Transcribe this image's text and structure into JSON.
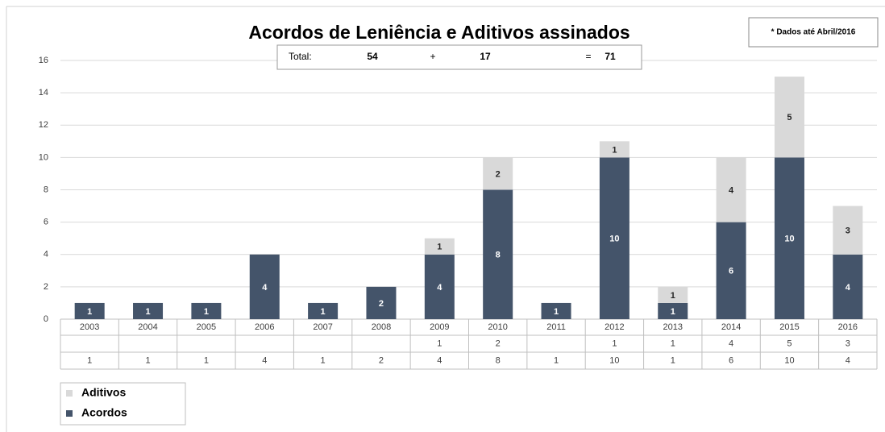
{
  "chart_data": {
    "type": "bar",
    "stacked": true,
    "title": "Acordos de Leniência e Aditivos assinados",
    "note": "* Dados até Abril/2016",
    "total": {
      "label": "Total:",
      "acordos": 54,
      "plus": "+",
      "aditivos": 17,
      "equals": "=",
      "sum": 71
    },
    "categories": [
      "2003",
      "2004",
      "2005",
      "2006",
      "2007",
      "2008",
      "2009",
      "2010",
      "2011",
      "2012",
      "2013",
      "2014",
      "2015",
      "2016"
    ],
    "series": [
      {
        "name": "Acordos",
        "color": "#44546a",
        "values": [
          1,
          1,
          1,
          4,
          1,
          2,
          4,
          8,
          1,
          10,
          1,
          6,
          10,
          4
        ]
      },
      {
        "name": "Aditivos",
        "color": "#d9d9d9",
        "values": [
          null,
          null,
          null,
          null,
          null,
          null,
          1,
          2,
          null,
          1,
          1,
          4,
          5,
          3
        ]
      }
    ],
    "ylim": [
      0,
      16
    ],
    "yticks": [
      0,
      2,
      4,
      6,
      8,
      10,
      12,
      14,
      16
    ],
    "grid": true
  }
}
